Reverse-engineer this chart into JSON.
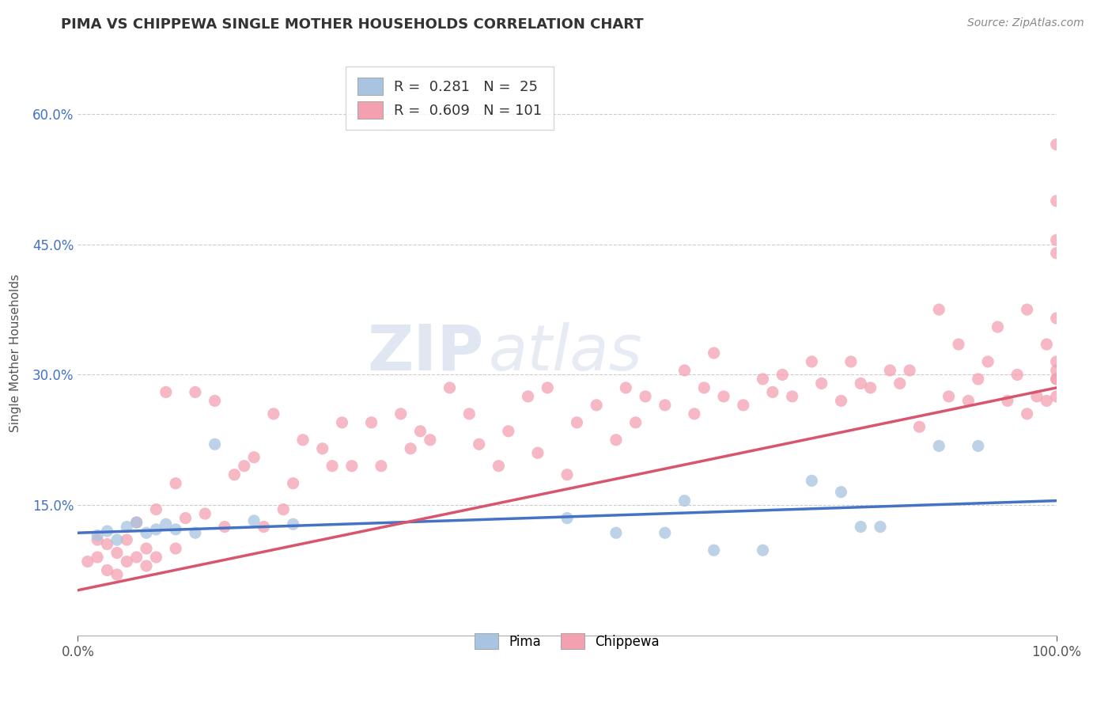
{
  "title": "PIMA VS CHIPPEWA SINGLE MOTHER HOUSEHOLDS CORRELATION CHART",
  "source_text": "Source: ZipAtlas.com",
  "ylabel": "Single Mother Households",
  "xlim": [
    0.0,
    1.0
  ],
  "ylim": [
    0.0,
    0.65
  ],
  "xtick_labels": [
    "0.0%",
    "100.0%"
  ],
  "ytick_labels": [
    "15.0%",
    "30.0%",
    "45.0%",
    "60.0%"
  ],
  "ytick_positions": [
    0.15,
    0.3,
    0.45,
    0.6
  ],
  "pima_color": "#a8c4e0",
  "chippewa_color": "#f4a0b0",
  "pima_line_color": "#4472c4",
  "chippewa_line_color": "#d9556e",
  "legend_pima_label": "R =  0.281   N =  25",
  "legend_chippewa_label": "R =  0.609   N = 101",
  "watermark_zip": "ZIP",
  "watermark_atlas": "atlas",
  "background_color": "#ffffff",
  "grid_color": "#cccccc",
  "pima_line_start_y": 0.118,
  "pima_line_end_y": 0.155,
  "chippewa_line_start_y": 0.052,
  "chippewa_line_end_y": 0.285,
  "pima_scatter_x": [
    0.02,
    0.03,
    0.04,
    0.05,
    0.06,
    0.07,
    0.08,
    0.09,
    0.1,
    0.12,
    0.14,
    0.18,
    0.22,
    0.5,
    0.55,
    0.6,
    0.62,
    0.65,
    0.7,
    0.75,
    0.78,
    0.8,
    0.82,
    0.88,
    0.92
  ],
  "pima_scatter_y": [
    0.115,
    0.12,
    0.11,
    0.125,
    0.13,
    0.118,
    0.122,
    0.128,
    0.122,
    0.118,
    0.22,
    0.132,
    0.128,
    0.135,
    0.118,
    0.118,
    0.155,
    0.098,
    0.098,
    0.178,
    0.165,
    0.125,
    0.125,
    0.218,
    0.218
  ],
  "chippewa_scatter_x": [
    0.01,
    0.02,
    0.02,
    0.03,
    0.03,
    0.04,
    0.04,
    0.05,
    0.05,
    0.06,
    0.06,
    0.07,
    0.07,
    0.08,
    0.08,
    0.09,
    0.1,
    0.1,
    0.11,
    0.12,
    0.13,
    0.14,
    0.15,
    0.16,
    0.17,
    0.18,
    0.19,
    0.2,
    0.21,
    0.22,
    0.23,
    0.25,
    0.26,
    0.27,
    0.28,
    0.3,
    0.31,
    0.33,
    0.34,
    0.35,
    0.36,
    0.38,
    0.4,
    0.41,
    0.43,
    0.44,
    0.46,
    0.47,
    0.48,
    0.5,
    0.51,
    0.53,
    0.55,
    0.56,
    0.57,
    0.58,
    0.6,
    0.62,
    0.63,
    0.64,
    0.65,
    0.66,
    0.68,
    0.7,
    0.71,
    0.72,
    0.73,
    0.75,
    0.76,
    0.78,
    0.79,
    0.8,
    0.81,
    0.83,
    0.84,
    0.85,
    0.86,
    0.88,
    0.89,
    0.9,
    0.91,
    0.92,
    0.93,
    0.94,
    0.95,
    0.96,
    0.97,
    0.97,
    0.98,
    0.99,
    0.99,
    1.0,
    1.0,
    1.0,
    1.0,
    1.0,
    1.0,
    1.0,
    1.0,
    1.0,
    1.0
  ],
  "chippewa_scatter_y": [
    0.085,
    0.09,
    0.11,
    0.075,
    0.105,
    0.07,
    0.095,
    0.085,
    0.11,
    0.09,
    0.13,
    0.08,
    0.1,
    0.09,
    0.145,
    0.28,
    0.1,
    0.175,
    0.135,
    0.28,
    0.14,
    0.27,
    0.125,
    0.185,
    0.195,
    0.205,
    0.125,
    0.255,
    0.145,
    0.175,
    0.225,
    0.215,
    0.195,
    0.245,
    0.195,
    0.245,
    0.195,
    0.255,
    0.215,
    0.235,
    0.225,
    0.285,
    0.255,
    0.22,
    0.195,
    0.235,
    0.275,
    0.21,
    0.285,
    0.185,
    0.245,
    0.265,
    0.225,
    0.285,
    0.245,
    0.275,
    0.265,
    0.305,
    0.255,
    0.285,
    0.325,
    0.275,
    0.265,
    0.295,
    0.28,
    0.3,
    0.275,
    0.315,
    0.29,
    0.27,
    0.315,
    0.29,
    0.285,
    0.305,
    0.29,
    0.305,
    0.24,
    0.375,
    0.275,
    0.335,
    0.27,
    0.295,
    0.315,
    0.355,
    0.27,
    0.3,
    0.255,
    0.375,
    0.275,
    0.335,
    0.27,
    0.295,
    0.315,
    0.365,
    0.275,
    0.305,
    0.455,
    0.565,
    0.5,
    0.295,
    0.44
  ]
}
